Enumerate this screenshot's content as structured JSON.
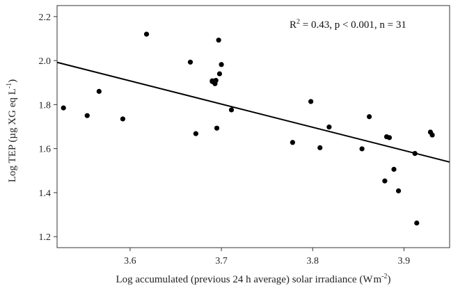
{
  "chart_data": {
    "type": "scatter",
    "xlabel_main": "Log accumulated (previous 24 h average) solar irradiance (W",
    "xlabel_unit": "m",
    "xlabel_exp": "-2",
    "xlabel_close": ")",
    "ylabel_main": "Log TEP (µg XG eq L",
    "ylabel_exp": "-1",
    "ylabel_close": ")",
    "annotation": {
      "r2_label": "R",
      "r2_exp": "2",
      "rest": " = 0.43, p < 0.001, n = 31"
    },
    "xlim": [
      3.52,
      3.95
    ],
    "ylim": [
      1.15,
      2.25
    ],
    "xticks": [
      3.6,
      3.7,
      3.8,
      3.9
    ],
    "yticks": [
      1.2,
      1.4,
      1.6,
      1.8,
      2.0,
      2.2
    ],
    "xtick_labels": [
      "3.6",
      "3.7",
      "3.8",
      "3.9"
    ],
    "ytick_labels": [
      "1.2",
      "1.4",
      "1.6",
      "1.8",
      "2.0",
      "2.2"
    ],
    "points": [
      {
        "x": 3.527,
        "y": 1.785
      },
      {
        "x": 3.553,
        "y": 1.75
      },
      {
        "x": 3.566,
        "y": 1.86
      },
      {
        "x": 3.592,
        "y": 1.735
      },
      {
        "x": 3.618,
        "y": 2.12
      },
      {
        "x": 3.666,
        "y": 1.993
      },
      {
        "x": 3.672,
        "y": 1.668
      },
      {
        "x": 3.69,
        "y": 1.908
      },
      {
        "x": 3.693,
        "y": 1.895
      },
      {
        "x": 3.694,
        "y": 1.91
      },
      {
        "x": 3.695,
        "y": 1.693
      },
      {
        "x": 3.697,
        "y": 2.093
      },
      {
        "x": 3.698,
        "y": 1.94
      },
      {
        "x": 3.7,
        "y": 1.982
      },
      {
        "x": 3.711,
        "y": 1.776
      },
      {
        "x": 3.778,
        "y": 1.628
      },
      {
        "x": 3.798,
        "y": 1.814
      },
      {
        "x": 3.808,
        "y": 1.604
      },
      {
        "x": 3.818,
        "y": 1.698
      },
      {
        "x": 3.854,
        "y": 1.599
      },
      {
        "x": 3.862,
        "y": 1.745
      },
      {
        "x": 3.879,
        "y": 1.453
      },
      {
        "x": 3.881,
        "y": 1.654
      },
      {
        "x": 3.884,
        "y": 1.65
      },
      {
        "x": 3.889,
        "y": 1.506
      },
      {
        "x": 3.894,
        "y": 1.408
      },
      {
        "x": 3.912,
        "y": 1.578
      },
      {
        "x": 3.914,
        "y": 1.262
      },
      {
        "x": 3.929,
        "y": 1.675
      },
      {
        "x": 3.931,
        "y": 1.662
      },
      {
        "x": 3.69,
        "y": 1.905
      }
    ],
    "regression": {
      "x": [
        3.52,
        3.95
      ],
      "y": [
        1.992,
        1.539
      ]
    },
    "grid": false,
    "legend": "none",
    "colors": {
      "point": "#000000",
      "line": "#000000",
      "axis": "#333333"
    }
  }
}
